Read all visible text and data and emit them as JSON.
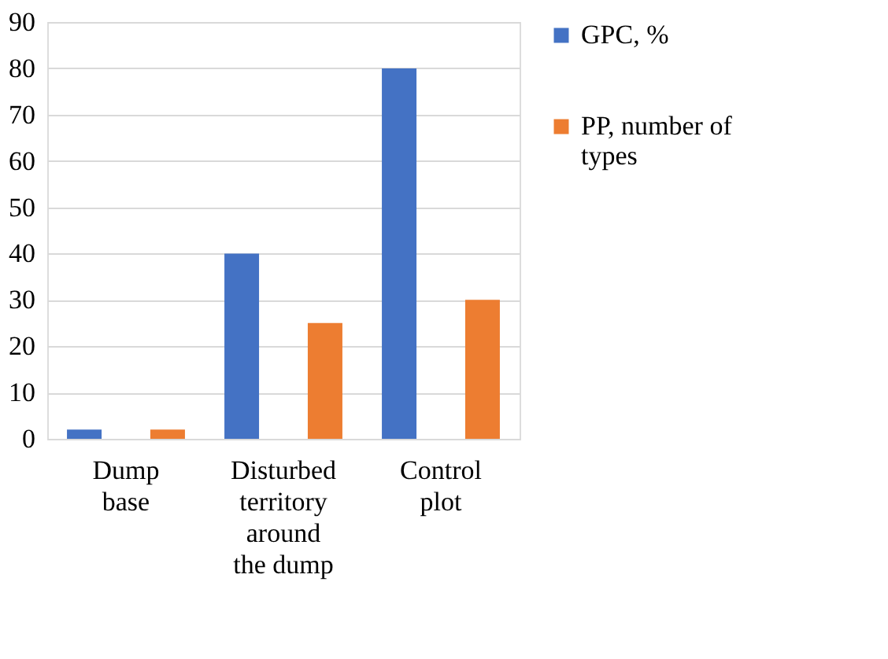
{
  "chart_data": {
    "type": "bar",
    "categories": [
      "Dump base",
      "Disturbed territory around the dump",
      "Control plot"
    ],
    "series": [
      {
        "name": "GPC, %",
        "color": "#4472c4",
        "values": [
          2,
          40,
          80
        ]
      },
      {
        "name": "PP, number of types",
        "color": "#ed7d31",
        "values": [
          2,
          25,
          30
        ]
      }
    ],
    "ylim": [
      0,
      90
    ],
    "yticks": [
      0,
      10,
      20,
      30,
      40,
      50,
      60,
      70,
      80,
      90
    ],
    "grid": "y",
    "legend": "right"
  }
}
